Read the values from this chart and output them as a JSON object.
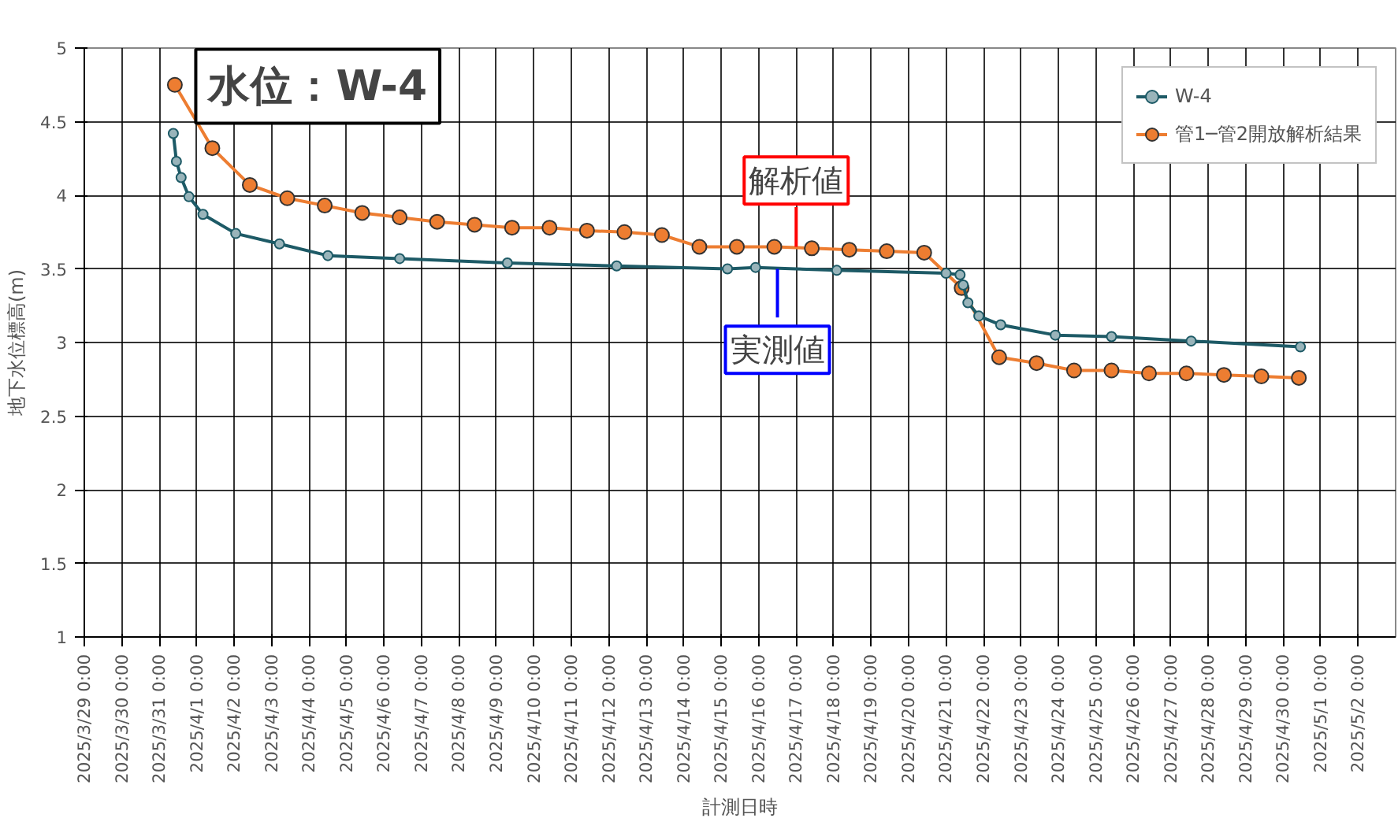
{
  "chart_data": {
    "type": "line",
    "title": "水位：W-4",
    "xlabel": "計測日時",
    "ylabel": "地下水位標高(m)",
    "xlim": [
      "2025-03-29",
      "2025-05-03"
    ],
    "xticks": [
      {
        "value": "2025-03-29",
        "label": "2025/3/29 0:00"
      },
      {
        "value": "2025-03-30",
        "label": "2025/3/30 0:00"
      },
      {
        "value": "2025-03-31",
        "label": "2025/3/31 0:00"
      },
      {
        "value": "2025-04-01",
        "label": "2025/4/1 0:00"
      },
      {
        "value": "2025-04-02",
        "label": "2025/4/2 0:00"
      },
      {
        "value": "2025-04-03",
        "label": "2025/4/3 0:00"
      },
      {
        "value": "2025-04-04",
        "label": "2025/4/4 0:00"
      },
      {
        "value": "2025-04-05",
        "label": "2025/4/5 0:00"
      },
      {
        "value": "2025-04-06",
        "label": "2025/4/6 0:00"
      },
      {
        "value": "2025-04-07",
        "label": "2025/4/7 0:00"
      },
      {
        "value": "2025-04-08",
        "label": "2025/4/8 0:00"
      },
      {
        "value": "2025-04-09",
        "label": "2025/4/9 0:00"
      },
      {
        "value": "2025-04-10",
        "label": "2025/4/10 0:00"
      },
      {
        "value": "2025-04-11",
        "label": "2025/4/11 0:00"
      },
      {
        "value": "2025-04-12",
        "label": "2025/4/12 0:00"
      },
      {
        "value": "2025-04-13",
        "label": "2025/4/13 0:00"
      },
      {
        "value": "2025-04-14",
        "label": "2025/4/14 0:00"
      },
      {
        "value": "2025-04-15",
        "label": "2025/4/15 0:00"
      },
      {
        "value": "2025-04-16",
        "label": "2025/4/16 0:00"
      },
      {
        "value": "2025-04-17",
        "label": "2025/4/17 0:00"
      },
      {
        "value": "2025-04-18",
        "label": "2025/4/18 0:00"
      },
      {
        "value": "2025-04-19",
        "label": "2025/4/19 0:00"
      },
      {
        "value": "2025-04-20",
        "label": "2025/4/20 0:00"
      },
      {
        "value": "2025-04-21",
        "label": "2025/4/21 0:00"
      },
      {
        "value": "2025-04-22",
        "label": "2025/4/22 0:00"
      },
      {
        "value": "2025-04-23",
        "label": "2025/4/23 0:00"
      },
      {
        "value": "2025-04-24",
        "label": "2025/4/24 0:00"
      },
      {
        "value": "2025-04-25",
        "label": "2025/4/25 0:00"
      },
      {
        "value": "2025-04-26",
        "label": "2025/4/26 0:00"
      },
      {
        "value": "2025-04-27",
        "label": "2025/4/27 0:00"
      },
      {
        "value": "2025-04-28",
        "label": "2025/4/28 0:00"
      },
      {
        "value": "2025-04-29",
        "label": "2025/4/29 0:00"
      },
      {
        "value": "2025-04-30",
        "label": "2025/4/30 0:00"
      },
      {
        "value": "2025-05-01",
        "label": "2025/5/1 0:00"
      },
      {
        "value": "2025-05-02",
        "label": "2025/5/2 0:00"
      }
    ],
    "ylim": [
      1,
      5
    ],
    "yticks": [
      1,
      1.5,
      2,
      2.5,
      3,
      3.5,
      4,
      4.5,
      5
    ],
    "grid": true,
    "legend": "top right",
    "marker": "circle",
    "line_style": "solid",
    "series": [
      {
        "name": "W-4",
        "color": "#1d5a66",
        "x": [
          "2025-03-31T09:00",
          "2025-03-31T11:00",
          "2025-03-31T14:00",
          "2025-03-31T19:00",
          "2025-04-01T04:00",
          "2025-04-02T01:00",
          "2025-04-03T05:00",
          "2025-04-04T12:00",
          "2025-04-06T10:00",
          "2025-04-09T07:00",
          "2025-04-12T05:00",
          "2025-04-15T04:00",
          "2025-04-15T22:00",
          "2025-04-18T02:00",
          "2025-04-21T00:00",
          "2025-04-21T09:00",
          "2025-04-21T11:00",
          "2025-04-21T14:00",
          "2025-04-21T21:00",
          "2025-04-22T11:00",
          "2025-04-23T22:00",
          "2025-04-25T10:00",
          "2025-04-27T13:00",
          "2025-04-30T11:00"
        ],
        "values": [
          4.42,
          4.23,
          4.12,
          3.99,
          3.87,
          3.74,
          3.67,
          3.59,
          3.57,
          3.54,
          3.52,
          3.5,
          3.51,
          3.49,
          3.47,
          3.46,
          3.39,
          3.27,
          3.18,
          3.12,
          3.05,
          3.04,
          3.01,
          2.97
        ]
      },
      {
        "name": "管1─管2開放解析結果",
        "color": "#ed7d31",
        "x": [
          "2025-03-31T10:00",
          "2025-04-01T10:00",
          "2025-04-02T10:00",
          "2025-04-03T10:00",
          "2025-04-04T10:00",
          "2025-04-05T10:00",
          "2025-04-06T10:00",
          "2025-04-07T10:00",
          "2025-04-08T10:00",
          "2025-04-09T10:00",
          "2025-04-10T10:00",
          "2025-04-11T10:00",
          "2025-04-12T10:00",
          "2025-04-13T10:00",
          "2025-04-14T10:00",
          "2025-04-15T10:00",
          "2025-04-16T10:00",
          "2025-04-17T10:00",
          "2025-04-18T10:00",
          "2025-04-19T10:00",
          "2025-04-20T10:00",
          "2025-04-21T10:00",
          "2025-04-22T10:00",
          "2025-04-23T10:00",
          "2025-04-24T10:00",
          "2025-04-25T10:00",
          "2025-04-26T10:00",
          "2025-04-27T10:00",
          "2025-04-28T10:00",
          "2025-04-29T10:00",
          "2025-04-30T10:00"
        ],
        "values": [
          4.75,
          4.32,
          4.07,
          3.98,
          3.93,
          3.88,
          3.85,
          3.82,
          3.8,
          3.78,
          3.78,
          3.76,
          3.75,
          3.73,
          3.65,
          3.65,
          3.65,
          3.64,
          3.63,
          3.62,
          3.61,
          3.37,
          2.9,
          2.86,
          2.81,
          2.81,
          2.79,
          2.79,
          2.78,
          2.77,
          2.76
        ]
      }
    ],
    "annotations": [
      {
        "text": "解析値",
        "x": "2025-04-17T00:00",
        "y": 3.65
      },
      {
        "text": "実測値",
        "x": "2025-04-16T12:00",
        "y": 3.5
      }
    ]
  }
}
